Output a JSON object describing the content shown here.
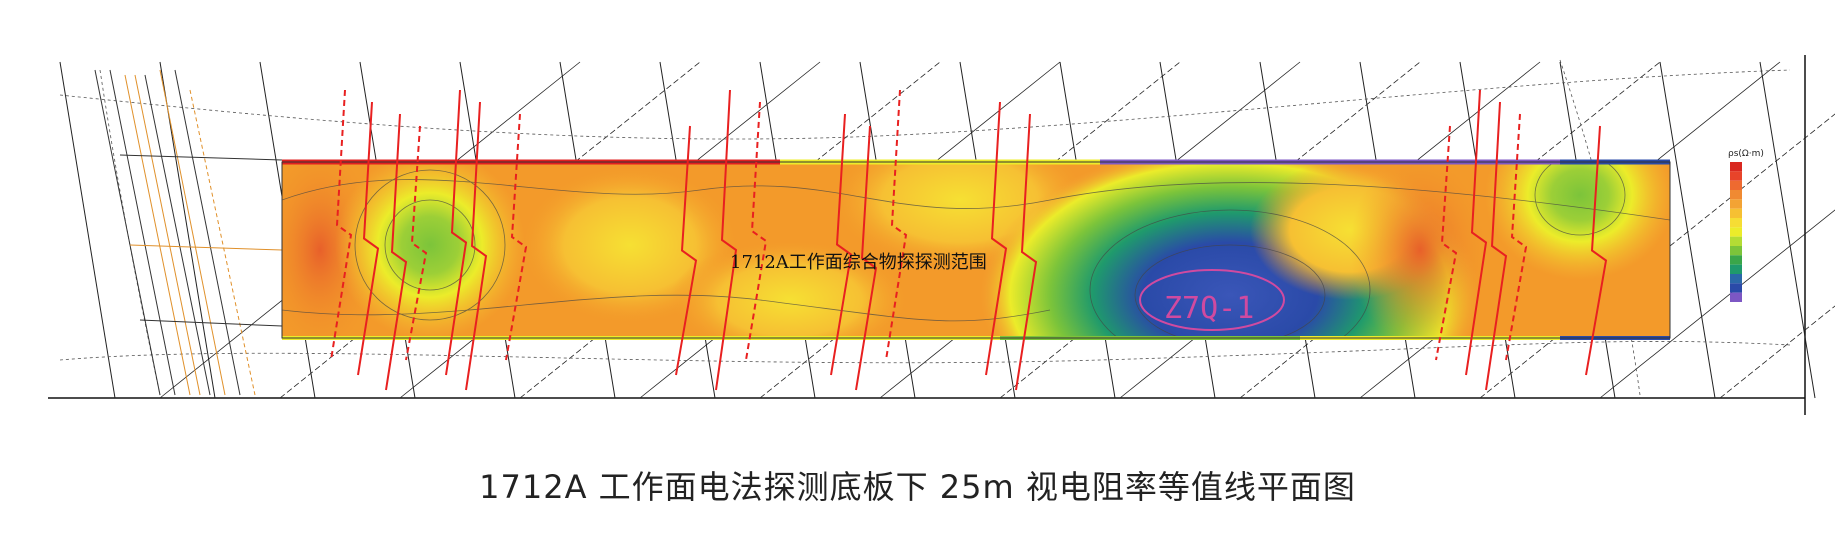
{
  "figure": {
    "caption": "1712A 工作面电法探测底板下 25m 视电阻率等值线平面图"
  },
  "map": {
    "area_label": "1712A工作面综合物探探测范围",
    "anomaly_label": "Z7Q-1",
    "legend_title": "ρs(Ω·m)",
    "colors": {
      "orange": "#f39a2a",
      "yellow": "#ecec2a",
      "green": "#7cc43a",
      "teal": "#1f9a6c",
      "blue": "#2a4aa8",
      "purple": "#7d57c4",
      "fault": "#e82020",
      "anomaly_text": "#d04aa0",
      "border_red": "#e02020"
    },
    "legend_colors": [
      "#d92820",
      "#e8442a",
      "#ee6a30",
      "#f08a32",
      "#f3a334",
      "#f6c033",
      "#f6dd34",
      "#ecec2a",
      "#b4dc34",
      "#7cc43a",
      "#3aa64a",
      "#1f9a6c",
      "#2a68a8",
      "#2a4aa8",
      "#7d57c4"
    ]
  }
}
